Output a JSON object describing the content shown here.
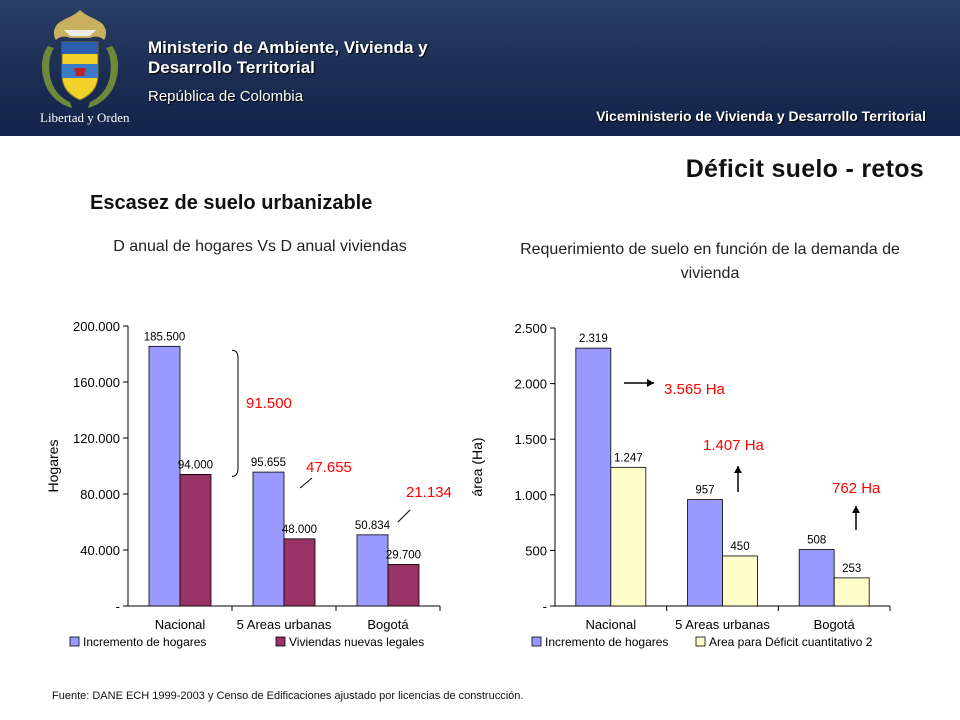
{
  "header": {
    "crest_caption": "Libertad y Orden",
    "ministry_line1": "Ministerio de Ambiente, Vivienda y",
    "ministry_line2": "Desarrollo Territorial",
    "republic": "República de Colombia",
    "viceministry": "Viceministerio de Vivienda y Desarrollo Territorial"
  },
  "slide": {
    "title": "Déficit suelo - retos",
    "subtitle": "Escasez de suelo urbanizable",
    "source": "Fuente: DANE ECH 1999-2003  y  Censo de Edificaciones ajustado por licencias de construcción."
  },
  "colors": {
    "header_bg": "#1b2d52",
    "series_blue": "#9999ff",
    "series_maroon": "#993366",
    "series_cream": "#ffffcc",
    "annotation_red": "#ff0000"
  },
  "chart_data": [
    {
      "type": "bar",
      "title": "D anual de hogares Vs D anual viviendas",
      "ylabel": "Hogares",
      "ylim": [
        0,
        200000
      ],
      "yticks": [
        "-",
        "40.000",
        "80.000",
        "120.000",
        "160.000",
        "200.000"
      ],
      "categories": [
        "Nacional",
        "5 Areas urbanas",
        "Bogotá"
      ],
      "series": [
        {
          "name": "Incremento de hogares",
          "values": [
            185500,
            95655,
            50834
          ],
          "labels": [
            "185.500",
            "95.655",
            "50.834"
          ],
          "color": "#9999ff"
        },
        {
          "name": "Viviendas nuevas legales",
          "values": [
            94000,
            48000,
            29700
          ],
          "labels": [
            "94.000",
            "48.000",
            "29.700"
          ],
          "color": "#993366"
        }
      ],
      "annotations": [
        "91.500",
        "47.655",
        "21.134"
      ],
      "legend": "bottom"
    },
    {
      "type": "bar",
      "title": "Requerimiento de suelo en función de la demanda de vivienda",
      "ylabel": "área (Ha)",
      "ylim": [
        0,
        2500
      ],
      "yticks": [
        "-",
        "500",
        "1.000",
        "1.500",
        "2.000",
        "2.500"
      ],
      "categories": [
        "Nacional",
        "5 Areas urbanas",
        "Bogotá"
      ],
      "series": [
        {
          "name": "Incremento de hogares",
          "values": [
            2319,
            957,
            508
          ],
          "labels": [
            "2.319",
            "957",
            "508"
          ],
          "color": "#9999ff"
        },
        {
          "name": "Area para Déficit cuantitativo 2",
          "values": [
            1247,
            450,
            253
          ],
          "labels": [
            "1.247",
            "450",
            "253"
          ],
          "color": "#ffffcc"
        }
      ],
      "annotations": [
        "3.565 Ha",
        "1.407 Ha",
        "762 Ha"
      ],
      "legend": "bottom"
    }
  ]
}
